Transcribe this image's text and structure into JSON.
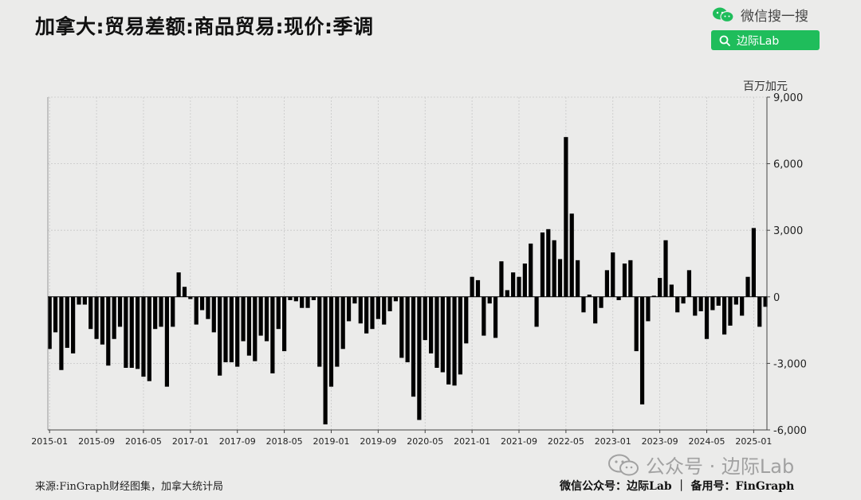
{
  "header": {
    "title": "加拿大:贸易差额:商品贸易:现价:季调",
    "search_brand_label": "微信搜一搜",
    "search_button_label": "边际Lab"
  },
  "footer": {
    "source": "来源:FinGraph财经图集，加拿大统计局",
    "right": "微信公众号：边际Lab ｜ 备用号：FinGraph",
    "watermark": "公众号 · 边际Lab"
  },
  "colors": {
    "bar": "#000000",
    "background": "#ebebea",
    "grid": "#c8c8c8",
    "accent": "#1fbd5b"
  },
  "chart_data": {
    "type": "bar",
    "unit": "百万加元",
    "x_start": "2015-01",
    "xticks": [
      "2015-01",
      "2015-09",
      "2016-05",
      "2017-01",
      "2017-09",
      "2018-05",
      "2019-01",
      "2019-09",
      "2020-05",
      "2021-01",
      "2021-09",
      "2022-05",
      "2023-01",
      "2023-09",
      "2024-05",
      "2025-01"
    ],
    "yticks": [
      9000,
      6000,
      3000,
      0,
      -3000,
      -6000
    ],
    "ytick_labels": [
      "9,000",
      "6,000",
      "3,000",
      "0",
      "-3,000",
      "-6,000"
    ],
    "ylim": [
      -6000,
      9000
    ],
    "grid": true,
    "y_axis_side": "right",
    "values": [
      -2350,
      -1600,
      -3300,
      -2300,
      -2550,
      -350,
      -350,
      -1450,
      -1900,
      -2150,
      -3100,
      -1900,
      -1350,
      -3200,
      -3200,
      -3250,
      -3600,
      -3800,
      -1450,
      -1350,
      -4050,
      -1350,
      1100,
      450,
      -100,
      -1250,
      -600,
      -1000,
      -1600,
      -3550,
      -2950,
      -2950,
      -3150,
      -2000,
      -2650,
      -2900,
      -1750,
      -2000,
      -3450,
      -1450,
      -2450,
      -150,
      -200,
      -500,
      -500,
      -150,
      -3150,
      -5750,
      -4050,
      -3150,
      -2350,
      -1100,
      -300,
      -1200,
      -1650,
      -1450,
      -1000,
      -1250,
      -650,
      -200,
      -2750,
      -2950,
      -4500,
      -5550,
      -1950,
      -2550,
      -3200,
      -3400,
      -3950,
      -4000,
      -3500,
      -2100,
      900,
      750,
      -1750,
      -300,
      -1850,
      1600,
      300,
      1100,
      900,
      1500,
      2400,
      -1350,
      2900,
      3050,
      2550,
      1700,
      7200,
      3750,
      1650,
      -700,
      100,
      -1200,
      -500,
      1200,
      2000,
      -150,
      1500,
      1650,
      -2450,
      -4850,
      -1100,
      50,
      850,
      2550,
      550,
      -700,
      -300,
      1200,
      -850,
      -650,
      -1900,
      -600,
      -400,
      -1700,
      -1300,
      -350,
      -850,
      900,
      3100,
      -1350,
      -450
    ]
  }
}
